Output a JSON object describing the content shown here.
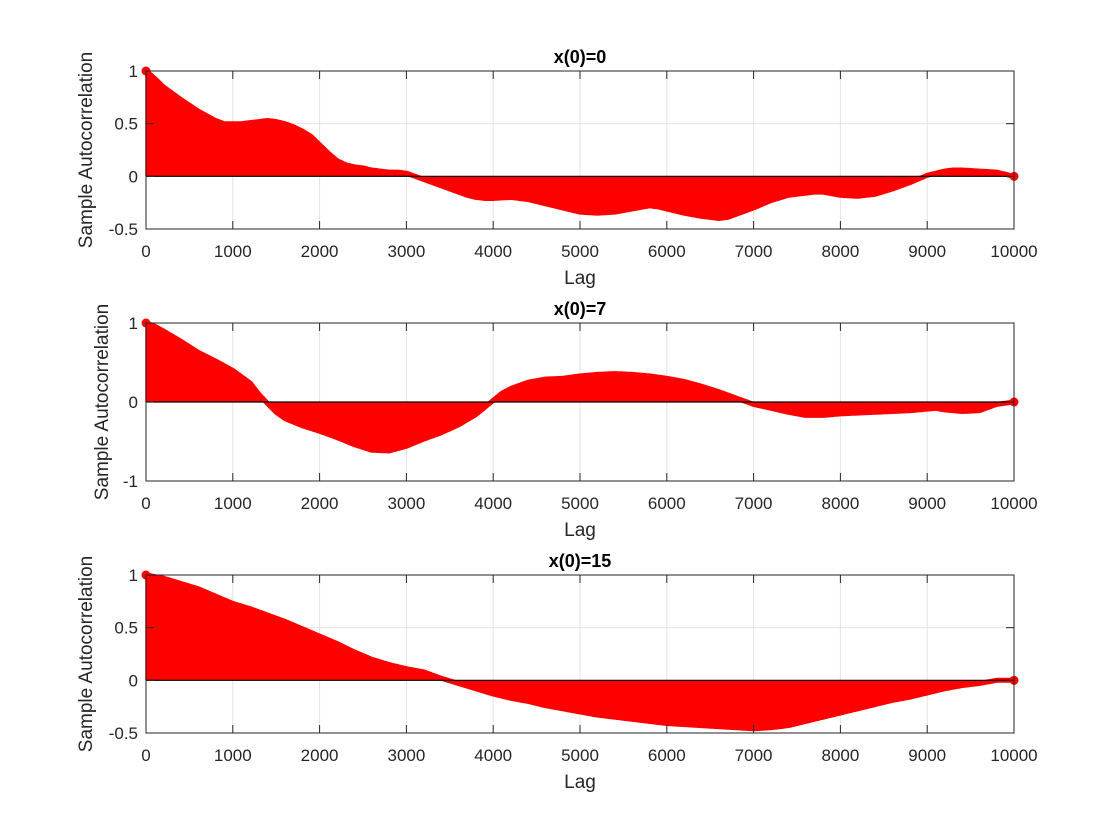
{
  "colors": {
    "stem": "#ff0000",
    "axes": "#262626",
    "grid": "#e3e3e3",
    "baseline": "#000000"
  },
  "chart_data": [
    {
      "type": "area",
      "title": "x(0)=0",
      "xlabel": "Lag",
      "ylabel": "Sample Autocorrelation",
      "xlim": [
        0,
        10000
      ],
      "ylim": [
        -0.5,
        1
      ],
      "xticks": [
        "0",
        "1000",
        "2000",
        "3000",
        "4000",
        "5000",
        "6000",
        "7000",
        "8000",
        "9000",
        "10000"
      ],
      "yticks": [
        "-0.5",
        "0",
        "0.5",
        "1"
      ],
      "grid": true,
      "series": [
        {
          "x": [
            0,
            100,
            200,
            400,
            600,
            800,
            900,
            1000,
            1100,
            1200,
            1300,
            1400,
            1500,
            1600,
            1700,
            1800,
            1900,
            2000,
            2100,
            2200,
            2300,
            2400,
            2500,
            2600,
            2700,
            2800,
            2900,
            3000,
            3100,
            3200,
            3300,
            3400,
            3500,
            3600,
            3700,
            3800,
            3900,
            4000,
            4200,
            4400,
            4600,
            4800,
            5000,
            5200,
            5400,
            5600,
            5800,
            5900,
            6000,
            6200,
            6400,
            6600,
            6700,
            6800,
            7000,
            7200,
            7400,
            7600,
            7700,
            7800,
            8000,
            8200,
            8400,
            8600,
            8800,
            9000,
            9200,
            9300,
            9400,
            9600,
            9800,
            10000
          ],
          "y": [
            1.0,
            0.93,
            0.85,
            0.73,
            0.62,
            0.53,
            0.5,
            0.5,
            0.5,
            0.51,
            0.52,
            0.53,
            0.52,
            0.5,
            0.47,
            0.43,
            0.38,
            0.3,
            0.22,
            0.15,
            0.11,
            0.09,
            0.08,
            0.06,
            0.05,
            0.04,
            0.04,
            0.03,
            0.0,
            -0.03,
            -0.06,
            -0.09,
            -0.12,
            -0.15,
            -0.18,
            -0.2,
            -0.21,
            -0.21,
            -0.2,
            -0.22,
            -0.26,
            -0.3,
            -0.34,
            -0.35,
            -0.34,
            -0.31,
            -0.28,
            -0.29,
            -0.31,
            -0.35,
            -0.38,
            -0.4,
            -0.39,
            -0.36,
            -0.3,
            -0.23,
            -0.18,
            -0.16,
            -0.15,
            -0.15,
            -0.18,
            -0.19,
            -0.17,
            -0.12,
            -0.06,
            0.01,
            0.05,
            0.06,
            0.06,
            0.05,
            0.04,
            0.0
          ]
        }
      ]
    },
    {
      "type": "area",
      "title": "x(0)=7",
      "xlabel": "Lag",
      "ylabel": "Sample Autocorrelation",
      "xlim": [
        0,
        10000
      ],
      "ylim": [
        -1,
        1
      ],
      "xticks": [
        "0",
        "1000",
        "2000",
        "3000",
        "4000",
        "5000",
        "6000",
        "7000",
        "8000",
        "9000",
        "10000"
      ],
      "yticks": [
        "-1",
        "0",
        "1"
      ],
      "grid": true,
      "series": [
        {
          "x": [
            0,
            100,
            200,
            400,
            600,
            800,
            1000,
            1200,
            1300,
            1400,
            1500,
            1600,
            1800,
            2000,
            2200,
            2400,
            2600,
            2800,
            3000,
            3200,
            3400,
            3600,
            3800,
            4000,
            4100,
            4200,
            4400,
            4600,
            4800,
            5000,
            5200,
            5400,
            5600,
            5800,
            6000,
            6200,
            6400,
            6600,
            6800,
            7000,
            7200,
            7400,
            7600,
            7800,
            8000,
            8200,
            8400,
            8600,
            8800,
            9000,
            9100,
            9200,
            9400,
            9600,
            9800,
            10000
          ],
          "y": [
            1.0,
            0.96,
            0.9,
            0.77,
            0.63,
            0.52,
            0.4,
            0.24,
            0.1,
            -0.02,
            -0.13,
            -0.21,
            -0.3,
            -0.37,
            -0.45,
            -0.54,
            -0.61,
            -0.62,
            -0.56,
            -0.47,
            -0.39,
            -0.29,
            -0.16,
            0.02,
            0.11,
            0.17,
            0.25,
            0.29,
            0.3,
            0.33,
            0.35,
            0.36,
            0.35,
            0.33,
            0.3,
            0.26,
            0.2,
            0.13,
            0.05,
            -0.03,
            -0.08,
            -0.13,
            -0.17,
            -0.17,
            -0.15,
            -0.14,
            -0.13,
            -0.12,
            -0.11,
            -0.09,
            -0.08,
            -0.1,
            -0.12,
            -0.11,
            -0.03,
            0.0
          ]
        }
      ]
    },
    {
      "type": "area",
      "title": "x(0)=15",
      "xlabel": "Lag",
      "ylabel": "Sample Autocorrelation",
      "xlim": [
        0,
        10000
      ],
      "ylim": [
        -0.5,
        1
      ],
      "xticks": [
        "0",
        "1000",
        "2000",
        "3000",
        "4000",
        "5000",
        "6000",
        "7000",
        "8000",
        "9000",
        "10000"
      ],
      "yticks": [
        "-0.5",
        "0",
        "0.5",
        "1"
      ],
      "grid": true,
      "series": [
        {
          "x": [
            0,
            200,
            400,
            600,
            800,
            1000,
            1200,
            1400,
            1600,
            1800,
            2000,
            2200,
            2400,
            2600,
            2800,
            3000,
            3200,
            3300,
            3400,
            3600,
            3800,
            4000,
            4200,
            4400,
            4600,
            4800,
            5000,
            5200,
            5400,
            5600,
            5800,
            6000,
            6200,
            6400,
            6600,
            6800,
            7000,
            7200,
            7400,
            7600,
            7800,
            8000,
            8200,
            8400,
            8600,
            8800,
            9000,
            9200,
            9400,
            9600,
            9800,
            10000
          ],
          "y": [
            1.0,
            0.97,
            0.92,
            0.87,
            0.8,
            0.73,
            0.68,
            0.62,
            0.56,
            0.49,
            0.42,
            0.35,
            0.27,
            0.2,
            0.15,
            0.11,
            0.08,
            0.05,
            0.02,
            -0.03,
            -0.08,
            -0.13,
            -0.17,
            -0.2,
            -0.24,
            -0.27,
            -0.3,
            -0.33,
            -0.35,
            -0.37,
            -0.39,
            -0.41,
            -0.42,
            -0.43,
            -0.44,
            -0.45,
            -0.46,
            -0.45,
            -0.43,
            -0.39,
            -0.35,
            -0.31,
            -0.27,
            -0.23,
            -0.19,
            -0.16,
            -0.12,
            -0.08,
            -0.05,
            -0.03,
            0.0,
            0.0
          ]
        }
      ]
    }
  ]
}
